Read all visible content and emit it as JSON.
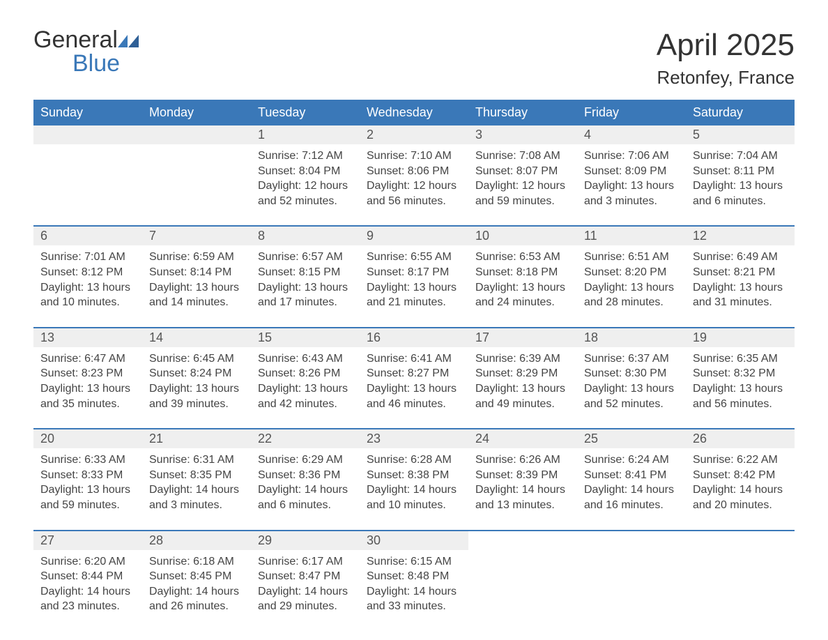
{
  "brand": {
    "word1": "General",
    "word2": "Blue",
    "accent_color": "#3a78b8"
  },
  "title": "April 2025",
  "location": "Retonfey, France",
  "colors": {
    "header_bg": "#3a78b8",
    "header_text": "#ffffff",
    "daynum_bg": "#efefef",
    "body_bg": "#ffffff",
    "text": "#333333",
    "week_divider": "#3a78b8"
  },
  "weekdays": [
    "Sunday",
    "Monday",
    "Tuesday",
    "Wednesday",
    "Thursday",
    "Friday",
    "Saturday"
  ],
  "weeks": [
    [
      {
        "n": "",
        "sunrise": "",
        "sunset": "",
        "dl1": "",
        "dl2": ""
      },
      {
        "n": "",
        "sunrise": "",
        "sunset": "",
        "dl1": "",
        "dl2": ""
      },
      {
        "n": "1",
        "sunrise": "Sunrise: 7:12 AM",
        "sunset": "Sunset: 8:04 PM",
        "dl1": "Daylight: 12 hours",
        "dl2": "and 52 minutes."
      },
      {
        "n": "2",
        "sunrise": "Sunrise: 7:10 AM",
        "sunset": "Sunset: 8:06 PM",
        "dl1": "Daylight: 12 hours",
        "dl2": "and 56 minutes."
      },
      {
        "n": "3",
        "sunrise": "Sunrise: 7:08 AM",
        "sunset": "Sunset: 8:07 PM",
        "dl1": "Daylight: 12 hours",
        "dl2": "and 59 minutes."
      },
      {
        "n": "4",
        "sunrise": "Sunrise: 7:06 AM",
        "sunset": "Sunset: 8:09 PM",
        "dl1": "Daylight: 13 hours",
        "dl2": "and 3 minutes."
      },
      {
        "n": "5",
        "sunrise": "Sunrise: 7:04 AM",
        "sunset": "Sunset: 8:11 PM",
        "dl1": "Daylight: 13 hours",
        "dl2": "and 6 minutes."
      }
    ],
    [
      {
        "n": "6",
        "sunrise": "Sunrise: 7:01 AM",
        "sunset": "Sunset: 8:12 PM",
        "dl1": "Daylight: 13 hours",
        "dl2": "and 10 minutes."
      },
      {
        "n": "7",
        "sunrise": "Sunrise: 6:59 AM",
        "sunset": "Sunset: 8:14 PM",
        "dl1": "Daylight: 13 hours",
        "dl2": "and 14 minutes."
      },
      {
        "n": "8",
        "sunrise": "Sunrise: 6:57 AM",
        "sunset": "Sunset: 8:15 PM",
        "dl1": "Daylight: 13 hours",
        "dl2": "and 17 minutes."
      },
      {
        "n": "9",
        "sunrise": "Sunrise: 6:55 AM",
        "sunset": "Sunset: 8:17 PM",
        "dl1": "Daylight: 13 hours",
        "dl2": "and 21 minutes."
      },
      {
        "n": "10",
        "sunrise": "Sunrise: 6:53 AM",
        "sunset": "Sunset: 8:18 PM",
        "dl1": "Daylight: 13 hours",
        "dl2": "and 24 minutes."
      },
      {
        "n": "11",
        "sunrise": "Sunrise: 6:51 AM",
        "sunset": "Sunset: 8:20 PM",
        "dl1": "Daylight: 13 hours",
        "dl2": "and 28 minutes."
      },
      {
        "n": "12",
        "sunrise": "Sunrise: 6:49 AM",
        "sunset": "Sunset: 8:21 PM",
        "dl1": "Daylight: 13 hours",
        "dl2": "and 31 minutes."
      }
    ],
    [
      {
        "n": "13",
        "sunrise": "Sunrise: 6:47 AM",
        "sunset": "Sunset: 8:23 PM",
        "dl1": "Daylight: 13 hours",
        "dl2": "and 35 minutes."
      },
      {
        "n": "14",
        "sunrise": "Sunrise: 6:45 AM",
        "sunset": "Sunset: 8:24 PM",
        "dl1": "Daylight: 13 hours",
        "dl2": "and 39 minutes."
      },
      {
        "n": "15",
        "sunrise": "Sunrise: 6:43 AM",
        "sunset": "Sunset: 8:26 PM",
        "dl1": "Daylight: 13 hours",
        "dl2": "and 42 minutes."
      },
      {
        "n": "16",
        "sunrise": "Sunrise: 6:41 AM",
        "sunset": "Sunset: 8:27 PM",
        "dl1": "Daylight: 13 hours",
        "dl2": "and 46 minutes."
      },
      {
        "n": "17",
        "sunrise": "Sunrise: 6:39 AM",
        "sunset": "Sunset: 8:29 PM",
        "dl1": "Daylight: 13 hours",
        "dl2": "and 49 minutes."
      },
      {
        "n": "18",
        "sunrise": "Sunrise: 6:37 AM",
        "sunset": "Sunset: 8:30 PM",
        "dl1": "Daylight: 13 hours",
        "dl2": "and 52 minutes."
      },
      {
        "n": "19",
        "sunrise": "Sunrise: 6:35 AM",
        "sunset": "Sunset: 8:32 PM",
        "dl1": "Daylight: 13 hours",
        "dl2": "and 56 minutes."
      }
    ],
    [
      {
        "n": "20",
        "sunrise": "Sunrise: 6:33 AM",
        "sunset": "Sunset: 8:33 PM",
        "dl1": "Daylight: 13 hours",
        "dl2": "and 59 minutes."
      },
      {
        "n": "21",
        "sunrise": "Sunrise: 6:31 AM",
        "sunset": "Sunset: 8:35 PM",
        "dl1": "Daylight: 14 hours",
        "dl2": "and 3 minutes."
      },
      {
        "n": "22",
        "sunrise": "Sunrise: 6:29 AM",
        "sunset": "Sunset: 8:36 PM",
        "dl1": "Daylight: 14 hours",
        "dl2": "and 6 minutes."
      },
      {
        "n": "23",
        "sunrise": "Sunrise: 6:28 AM",
        "sunset": "Sunset: 8:38 PM",
        "dl1": "Daylight: 14 hours",
        "dl2": "and 10 minutes."
      },
      {
        "n": "24",
        "sunrise": "Sunrise: 6:26 AM",
        "sunset": "Sunset: 8:39 PM",
        "dl1": "Daylight: 14 hours",
        "dl2": "and 13 minutes."
      },
      {
        "n": "25",
        "sunrise": "Sunrise: 6:24 AM",
        "sunset": "Sunset: 8:41 PM",
        "dl1": "Daylight: 14 hours",
        "dl2": "and 16 minutes."
      },
      {
        "n": "26",
        "sunrise": "Sunrise: 6:22 AM",
        "sunset": "Sunset: 8:42 PM",
        "dl1": "Daylight: 14 hours",
        "dl2": "and 20 minutes."
      }
    ],
    [
      {
        "n": "27",
        "sunrise": "Sunrise: 6:20 AM",
        "sunset": "Sunset: 8:44 PM",
        "dl1": "Daylight: 14 hours",
        "dl2": "and 23 minutes."
      },
      {
        "n": "28",
        "sunrise": "Sunrise: 6:18 AM",
        "sunset": "Sunset: 8:45 PM",
        "dl1": "Daylight: 14 hours",
        "dl2": "and 26 minutes."
      },
      {
        "n": "29",
        "sunrise": "Sunrise: 6:17 AM",
        "sunset": "Sunset: 8:47 PM",
        "dl1": "Daylight: 14 hours",
        "dl2": "and 29 minutes."
      },
      {
        "n": "30",
        "sunrise": "Sunrise: 6:15 AM",
        "sunset": "Sunset: 8:48 PM",
        "dl1": "Daylight: 14 hours",
        "dl2": "and 33 minutes."
      },
      {
        "n": "",
        "sunrise": "",
        "sunset": "",
        "dl1": "",
        "dl2": ""
      },
      {
        "n": "",
        "sunrise": "",
        "sunset": "",
        "dl1": "",
        "dl2": ""
      },
      {
        "n": "",
        "sunrise": "",
        "sunset": "",
        "dl1": "",
        "dl2": ""
      }
    ]
  ]
}
